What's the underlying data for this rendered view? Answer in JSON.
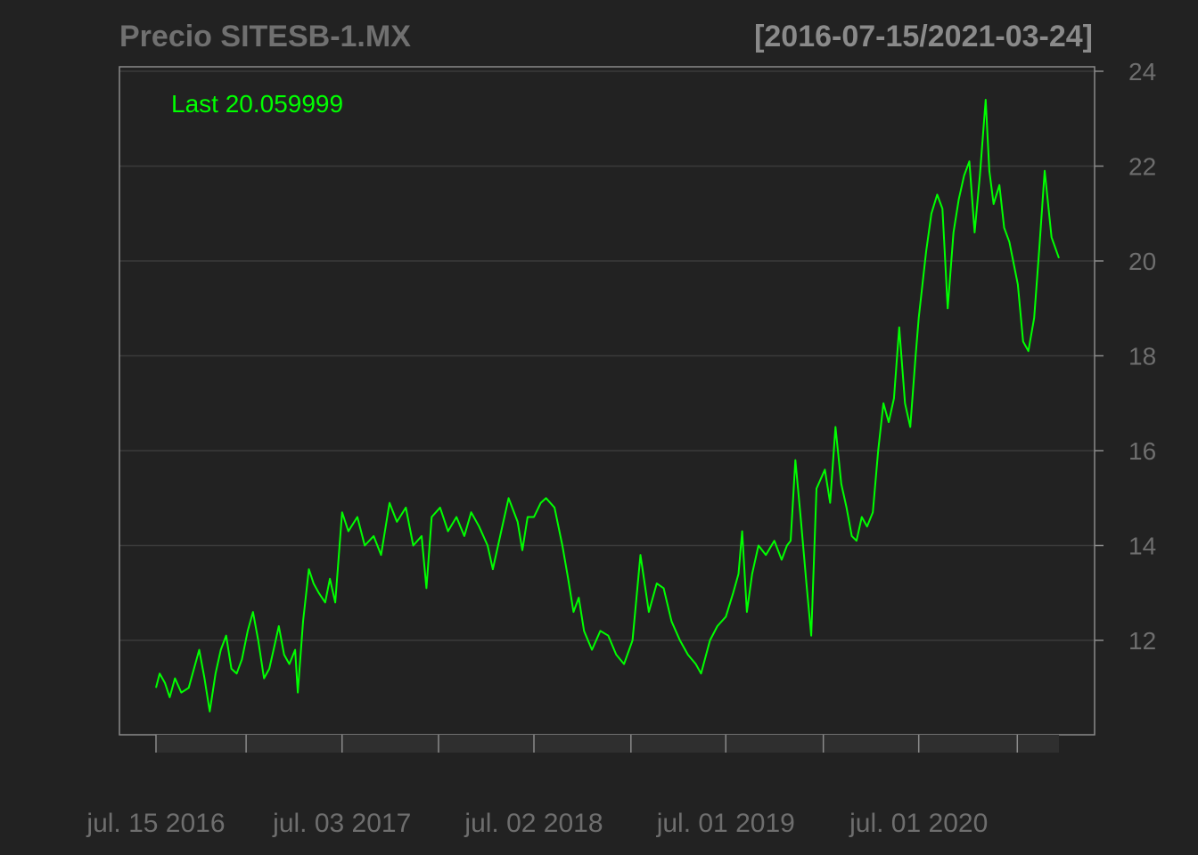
{
  "title": "Precio SITESB-1.MX",
  "date_range": "[2016-07-15/2021-03-24]",
  "last_label": "Last 20.059999",
  "colors": {
    "background": "#222222",
    "series": "#00ff00",
    "grid": "#3a3a3a",
    "frame": "#8a8a8a",
    "text": "#6e6e6e"
  },
  "chart_data": {
    "type": "line",
    "title": "Precio SITESB-1.MX",
    "date_range": "[2016-07-15/2021-03-24]",
    "xlabel": "",
    "ylabel": "",
    "ylim": [
      10,
      24
    ],
    "yticks": [
      12,
      14,
      16,
      18,
      20,
      22,
      24
    ],
    "xlim": [
      "2016-07-15",
      "2021-03-24"
    ],
    "x_tick_labels": [
      {
        "date": "2016-07-15",
        "label": "jul. 15 2016"
      },
      {
        "date": "2017-07-03",
        "label": "jul. 03 2017"
      },
      {
        "date": "2018-07-02",
        "label": "jul. 02 2018"
      },
      {
        "date": "2019-07-01",
        "label": "jul. 01 2019"
      },
      {
        "date": "2020-07-01",
        "label": "jul. 01 2020"
      }
    ],
    "x_minor_ticks": [
      "2017-01-02",
      "2018-01-02",
      "2019-01-02",
      "2020-01-02",
      "2021-01-04"
    ],
    "grid": true,
    "series": [
      {
        "name": "Last 20.059999",
        "last": 20.059999,
        "points": [
          [
            "2016-07-15",
            11.0
          ],
          [
            "2016-07-22",
            11.3
          ],
          [
            "2016-08-01",
            11.1
          ],
          [
            "2016-08-10",
            10.8
          ],
          [
            "2016-08-20",
            11.2
          ],
          [
            "2016-09-01",
            10.9
          ],
          [
            "2016-09-15",
            11.0
          ],
          [
            "2016-09-25",
            11.4
          ],
          [
            "2016-10-05",
            11.8
          ],
          [
            "2016-10-15",
            11.2
          ],
          [
            "2016-10-25",
            10.5
          ],
          [
            "2016-11-05",
            11.3
          ],
          [
            "2016-11-15",
            11.8
          ],
          [
            "2016-11-25",
            12.1
          ],
          [
            "2016-12-05",
            11.4
          ],
          [
            "2016-12-15",
            11.3
          ],
          [
            "2016-12-25",
            11.6
          ],
          [
            "2017-01-05",
            12.2
          ],
          [
            "2017-01-15",
            12.6
          ],
          [
            "2017-01-25",
            12.0
          ],
          [
            "2017-02-05",
            11.2
          ],
          [
            "2017-02-15",
            11.4
          ],
          [
            "2017-02-25",
            11.9
          ],
          [
            "2017-03-05",
            12.3
          ],
          [
            "2017-03-15",
            11.7
          ],
          [
            "2017-03-25",
            11.5
          ],
          [
            "2017-04-05",
            11.8
          ],
          [
            "2017-04-10",
            10.9
          ],
          [
            "2017-04-20",
            12.4
          ],
          [
            "2017-05-01",
            13.5
          ],
          [
            "2017-05-10",
            13.2
          ],
          [
            "2017-05-20",
            13.0
          ],
          [
            "2017-06-01",
            12.8
          ],
          [
            "2017-06-10",
            13.3
          ],
          [
            "2017-06-20",
            12.8
          ],
          [
            "2017-07-03",
            14.7
          ],
          [
            "2017-07-15",
            14.3
          ],
          [
            "2017-08-01",
            14.6
          ],
          [
            "2017-08-15",
            14.0
          ],
          [
            "2017-09-01",
            14.2
          ],
          [
            "2017-09-15",
            13.8
          ],
          [
            "2017-10-01",
            14.9
          ],
          [
            "2017-10-15",
            14.5
          ],
          [
            "2017-11-01",
            14.8
          ],
          [
            "2017-11-15",
            14.0
          ],
          [
            "2017-12-01",
            14.2
          ],
          [
            "2017-12-10",
            13.1
          ],
          [
            "2017-12-20",
            14.6
          ],
          [
            "2018-01-05",
            14.8
          ],
          [
            "2018-01-20",
            14.3
          ],
          [
            "2018-02-05",
            14.6
          ],
          [
            "2018-02-20",
            14.2
          ],
          [
            "2018-03-05",
            14.7
          ],
          [
            "2018-03-20",
            14.4
          ],
          [
            "2018-04-05",
            14.0
          ],
          [
            "2018-04-15",
            13.5
          ],
          [
            "2018-05-01",
            14.3
          ],
          [
            "2018-05-15",
            15.0
          ],
          [
            "2018-06-01",
            14.5
          ],
          [
            "2018-06-10",
            13.9
          ],
          [
            "2018-06-20",
            14.6
          ],
          [
            "2018-07-02",
            14.6
          ],
          [
            "2018-07-15",
            14.9
          ],
          [
            "2018-07-25",
            15.0
          ],
          [
            "2018-08-10",
            14.8
          ],
          [
            "2018-08-25",
            14.0
          ],
          [
            "2018-09-05",
            13.3
          ],
          [
            "2018-09-15",
            12.6
          ],
          [
            "2018-09-25",
            12.9
          ],
          [
            "2018-10-05",
            12.2
          ],
          [
            "2018-10-20",
            11.8
          ],
          [
            "2018-11-05",
            12.2
          ],
          [
            "2018-11-20",
            12.1
          ],
          [
            "2018-12-05",
            11.7
          ],
          [
            "2018-12-20",
            11.5
          ],
          [
            "2019-01-05",
            12.0
          ],
          [
            "2019-01-20",
            13.8
          ],
          [
            "2019-02-05",
            12.6
          ],
          [
            "2019-02-20",
            13.2
          ],
          [
            "2019-03-05",
            13.1
          ],
          [
            "2019-03-20",
            12.4
          ],
          [
            "2019-04-05",
            12.0
          ],
          [
            "2019-04-20",
            11.7
          ],
          [
            "2019-05-05",
            11.5
          ],
          [
            "2019-05-15",
            11.3
          ],
          [
            "2019-06-01",
            12.0
          ],
          [
            "2019-06-15",
            12.3
          ],
          [
            "2019-07-01",
            12.5
          ],
          [
            "2019-07-15",
            13.0
          ],
          [
            "2019-07-25",
            13.4
          ],
          [
            "2019-08-01",
            14.3
          ],
          [
            "2019-08-10",
            12.6
          ],
          [
            "2019-08-20",
            13.4
          ],
          [
            "2019-09-01",
            14.0
          ],
          [
            "2019-09-15",
            13.8
          ],
          [
            "2019-10-01",
            14.1
          ],
          [
            "2019-10-15",
            13.7
          ],
          [
            "2019-10-25",
            14.0
          ],
          [
            "2019-11-01",
            14.1
          ],
          [
            "2019-11-10",
            15.8
          ],
          [
            "2019-11-20",
            14.6
          ],
          [
            "2019-12-01",
            13.2
          ],
          [
            "2019-12-10",
            12.1
          ],
          [
            "2019-12-20",
            15.2
          ],
          [
            "2020-01-05",
            15.6
          ],
          [
            "2020-01-15",
            14.9
          ],
          [
            "2020-01-25",
            16.5
          ],
          [
            "2020-02-05",
            15.3
          ],
          [
            "2020-02-15",
            14.8
          ],
          [
            "2020-02-25",
            14.2
          ],
          [
            "2020-03-05",
            14.1
          ],
          [
            "2020-03-15",
            14.6
          ],
          [
            "2020-03-25",
            14.4
          ],
          [
            "2020-04-05",
            14.7
          ],
          [
            "2020-04-15",
            16.0
          ],
          [
            "2020-04-25",
            17.0
          ],
          [
            "2020-05-05",
            16.6
          ],
          [
            "2020-05-15",
            17.1
          ],
          [
            "2020-05-25",
            18.6
          ],
          [
            "2020-06-05",
            17.0
          ],
          [
            "2020-06-15",
            16.5
          ],
          [
            "2020-06-25",
            18.0
          ],
          [
            "2020-07-01",
            18.8
          ],
          [
            "2020-07-15",
            20.2
          ],
          [
            "2020-07-25",
            21.0
          ],
          [
            "2020-08-05",
            21.4
          ],
          [
            "2020-08-15",
            21.1
          ],
          [
            "2020-08-25",
            19.0
          ],
          [
            "2020-09-05",
            20.6
          ],
          [
            "2020-09-15",
            21.3
          ],
          [
            "2020-09-25",
            21.8
          ],
          [
            "2020-10-05",
            22.1
          ],
          [
            "2020-10-15",
            20.6
          ],
          [
            "2020-10-25",
            21.8
          ],
          [
            "2020-11-05",
            23.4
          ],
          [
            "2020-11-12",
            21.9
          ],
          [
            "2020-11-20",
            21.2
          ],
          [
            "2020-12-01",
            21.6
          ],
          [
            "2020-12-10",
            20.7
          ],
          [
            "2020-12-20",
            20.4
          ],
          [
            "2021-01-05",
            19.5
          ],
          [
            "2021-01-15",
            18.3
          ],
          [
            "2021-01-25",
            18.1
          ],
          [
            "2021-02-05",
            18.8
          ],
          [
            "2021-02-15",
            20.3
          ],
          [
            "2021-02-25",
            21.9
          ],
          [
            "2021-03-10",
            20.5
          ],
          [
            "2021-03-24",
            20.06
          ]
        ]
      }
    ]
  }
}
